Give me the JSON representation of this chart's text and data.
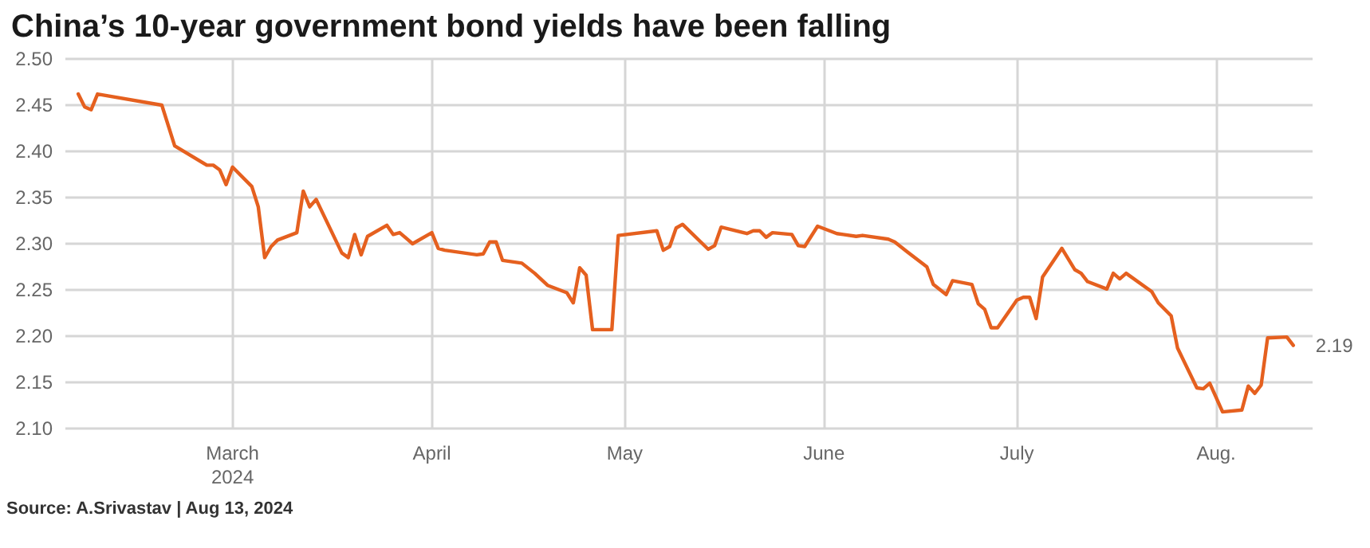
{
  "chart_data": {
    "type": "line",
    "title": "China’s 10-year government bond yields have been falling",
    "x": [
      "2024-02-06",
      "2024-02-07",
      "2024-02-08",
      "2024-02-09",
      "2024-02-19",
      "2024-02-21",
      "2024-02-26",
      "2024-02-27",
      "2024-02-28",
      "2024-02-29",
      "2024-03-01",
      "2024-03-04",
      "2024-03-05",
      "2024-03-06",
      "2024-03-07",
      "2024-03-08",
      "2024-03-11",
      "2024-03-12",
      "2024-03-13",
      "2024-03-14",
      "2024-03-18",
      "2024-03-19",
      "2024-03-20",
      "2024-03-21",
      "2024-03-22",
      "2024-03-25",
      "2024-03-26",
      "2024-03-27",
      "2024-03-29",
      "2024-04-01",
      "2024-04-02",
      "2024-04-03",
      "2024-04-08",
      "2024-04-09",
      "2024-04-10",
      "2024-04-11",
      "2024-04-12",
      "2024-04-15",
      "2024-04-17",
      "2024-04-19",
      "2024-04-22",
      "2024-04-23",
      "2024-04-24",
      "2024-04-25",
      "2024-04-26",
      "2024-04-29",
      "2024-04-30",
      "2024-05-06",
      "2024-05-07",
      "2024-05-08",
      "2024-05-09",
      "2024-05-10",
      "2024-05-14",
      "2024-05-15",
      "2024-05-16",
      "2024-05-20",
      "2024-05-21",
      "2024-05-22",
      "2024-05-23",
      "2024-05-24",
      "2024-05-27",
      "2024-05-28",
      "2024-05-29",
      "2024-05-31",
      "2024-06-03",
      "2024-06-04",
      "2024-06-06",
      "2024-06-07",
      "2024-06-11",
      "2024-06-12",
      "2024-06-14",
      "2024-06-17",
      "2024-06-18",
      "2024-06-20",
      "2024-06-21",
      "2024-06-24",
      "2024-06-25",
      "2024-06-26",
      "2024-06-27",
      "2024-06-28",
      "2024-07-01",
      "2024-07-02",
      "2024-07-03",
      "2024-07-04",
      "2024-07-05",
      "2024-07-08",
      "2024-07-10",
      "2024-07-11",
      "2024-07-12",
      "2024-07-15",
      "2024-07-16",
      "2024-07-17",
      "2024-07-18",
      "2024-07-22",
      "2024-07-23",
      "2024-07-25",
      "2024-07-26",
      "2024-07-29",
      "2024-07-30",
      "2024-07-31",
      "2024-08-02",
      "2024-08-05",
      "2024-08-06",
      "2024-08-07",
      "2024-08-08",
      "2024-08-09",
      "2024-08-12",
      "2024-08-13"
    ],
    "series": [
      {
        "color": "#e5601f",
        "values": [
          2.462,
          2.448,
          2.445,
          2.462,
          2.45,
          2.406,
          2.385,
          2.385,
          2.38,
          2.364,
          2.383,
          2.362,
          2.34,
          2.285,
          2.297,
          2.304,
          2.312,
          2.357,
          2.34,
          2.348,
          2.29,
          2.285,
          2.31,
          2.288,
          2.308,
          2.32,
          2.31,
          2.312,
          2.3,
          2.312,
          2.295,
          2.293,
          2.288,
          2.289,
          2.302,
          2.302,
          2.282,
          2.279,
          2.268,
          2.255,
          2.247,
          2.236,
          2.274,
          2.266,
          2.207,
          2.207,
          2.309,
          2.314,
          2.293,
          2.297,
          2.317,
          2.321,
          2.294,
          2.298,
          2.318,
          2.311,
          2.314,
          2.314,
          2.307,
          2.312,
          2.31,
          2.298,
          2.297,
          2.319,
          2.311,
          2.31,
          2.308,
          2.309,
          2.305,
          2.302,
          2.291,
          2.275,
          2.256,
          2.245,
          2.26,
          2.256,
          2.235,
          2.229,
          2.209,
          2.209,
          2.239,
          2.242,
          2.242,
          2.219,
          2.264,
          2.295,
          2.272,
          2.268,
          2.259,
          2.251,
          2.268,
          2.262,
          2.268,
          2.248,
          2.236,
          2.222,
          2.187,
          2.144,
          2.143,
          2.149,
          2.118,
          2.12,
          2.146,
          2.138,
          2.147,
          2.198,
          2.199,
          2.19
        ]
      }
    ],
    "xlim": [
      "2024-02-04",
      "2024-08-16"
    ],
    "xticks": [
      {
        "value": "2024-03-01",
        "label": "March\n2024"
      },
      {
        "value": "2024-04-01",
        "label": "April"
      },
      {
        "value": "2024-05-01",
        "label": "May"
      },
      {
        "value": "2024-06-01",
        "label": "June"
      },
      {
        "value": "2024-07-01",
        "label": "July"
      },
      {
        "value": "2024-08-01",
        "label": "Aug."
      }
    ],
    "ylim": [
      2.1,
      2.5
    ],
    "yticks": [
      {
        "value": 2.1,
        "label": "2.10"
      },
      2.15,
      {
        "value": 2.2,
        "label": "2.20"
      },
      2.25,
      {
        "value": 2.3,
        "label": "2.30"
      },
      2.35,
      {
        "value": 2.4,
        "label": "2.40"
      },
      2.45,
      {
        "value": 2.5,
        "label": "2.50"
      }
    ],
    "grid": true,
    "line_style": "solid",
    "marker": "none",
    "annotations": [
      {
        "text": "2.19",
        "x": "2024-08-13",
        "y": 2.19
      },
      "Source: A.Srivastav | Aug 13, 2024"
    ]
  }
}
